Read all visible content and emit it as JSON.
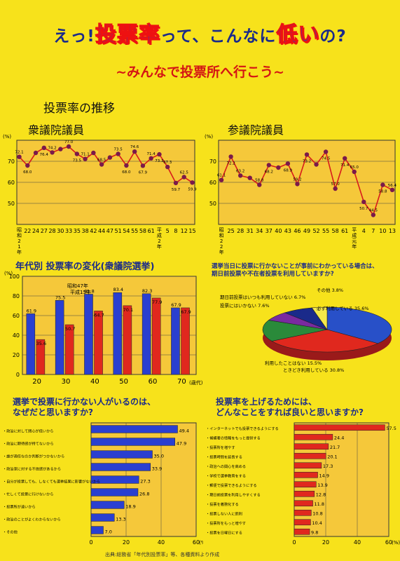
{
  "header": {
    "title_a": "えっ!",
    "title_b": "投票率",
    "title_c": "って、こんなに",
    "title_d": "低い",
    "title_e": "の?",
    "subtitle": "~みんなで投票所へ行こう~"
  },
  "trend_title": "投票率の推移",
  "colors": {
    "background": "#f7e21b",
    "panel": "#f5c83a",
    "line": "#d81b1b",
    "point": "#7a1a4a",
    "blue": "#2a3fd0",
    "red": "#e0281e",
    "navy": "#1a2a8a"
  },
  "chart_data": [
    {
      "type": "line",
      "title": "衆議院議員",
      "ylabel": "(%)",
      "ylim": [
        40,
        80
      ],
      "yticks": [
        "70",
        "60",
        "50"
      ],
      "x": [
        "昭和21年",
        "22",
        "24",
        "27",
        "28",
        "30",
        "33",
        "35",
        "38",
        "42",
        "44",
        "47",
        "51",
        "54",
        "55",
        "58",
        "61",
        "平成2年",
        "5",
        "8",
        "12",
        "15"
      ],
      "xlabels": [
        "昭和21年",
        "22",
        "24",
        "27",
        "28",
        "30",
        "33",
        "35",
        "38",
        "42",
        "44",
        "47",
        "51",
        "54",
        "55",
        "58",
        "61",
        "平成2年",
        "5",
        "8",
        "12",
        "15"
      ],
      "values": [
        72.1,
        68.0,
        74.0,
        76.4,
        74.2,
        75.8,
        77.0,
        73.5,
        71.1,
        74.0,
        68.5,
        71.8,
        73.5,
        68.0,
        74.6,
        67.9,
        71.4,
        73.3,
        67.3,
        59.7,
        62.5,
        59.9
      ],
      "labels": [
        "72.1",
        "68.0",
        "",
        "76.4",
        "74.2",
        "",
        "77.0",
        "73.5",
        "71.1",
        "",
        "68.5",
        "",
        "73.5",
        "68.0",
        "74.6",
        "67.9",
        "71.4",
        "73.3",
        "67.3",
        "59.7",
        "62.5",
        "59.9"
      ]
    },
    {
      "type": "line",
      "title": "参議院議員",
      "ylabel": "(%)",
      "ylim": [
        40,
        80
      ],
      "yticks": [
        "70",
        "60",
        "50"
      ],
      "x": [
        "昭和22年",
        "25",
        "28",
        "31",
        "34",
        "37",
        "40",
        "43",
        "46",
        "49",
        "52",
        "55",
        "58",
        "61",
        "平成元年",
        "4",
        "7",
        "10",
        "13"
      ],
      "xlabels": [
        "昭和22年",
        "25",
        "28",
        "31",
        "34",
        "37",
        "40",
        "43",
        "46",
        "49",
        "52",
        "55",
        "58",
        "61",
        "平成元年",
        "4",
        "7",
        "10",
        "13"
      ],
      "values": [
        61.1,
        72.2,
        63.2,
        62.1,
        58.8,
        68.2,
        67.0,
        68.9,
        59.2,
        73.2,
        68.5,
        74.5,
        57.0,
        71.4,
        65.0,
        50.7,
        44.5,
        58.8,
        56.4
      ],
      "labels": [
        "61.1",
        "72.2",
        "63.2",
        "",
        "58.8",
        "68.2",
        "",
        "68.9",
        "59.2",
        "73.2",
        "",
        "74.5",
        "57.0",
        "71.4",
        "65.0",
        "50.7",
        "44.5",
        "58.8",
        "56.4"
      ]
    },
    {
      "type": "bar",
      "title": "年代別 投票率の変化(衆議院選挙)",
      "ylabel": "(%)",
      "xlabel": "(歳代)",
      "ylim": [
        0,
        100
      ],
      "yticks": [
        "100",
        "80",
        "60",
        "40",
        "20",
        "0"
      ],
      "categories": [
        "20",
        "30",
        "40",
        "50",
        "60",
        "70"
      ],
      "series": [
        {
          "name": "昭和47年",
          "values": [
            61.9,
            75.5,
            81.8,
            83.4,
            82.3,
            67.9
          ]
        },
        {
          "name": "平成15年",
          "values": [
            35.6,
            50.7,
            64.7,
            70.1,
            77.9,
            67.9
          ]
        }
      ],
      "legend": [
        "昭和47年",
        "平成15年"
      ]
    },
    {
      "type": "pie",
      "title": "選挙当日に投票に行かないことが事前にわかっている場合は、期日前投票や不在者投票を利用していますか?",
      "slices": [
        {
          "label": "必ず利用している",
          "value": 35.6
        },
        {
          "label": "ときどき利用している",
          "value": 30.8
        },
        {
          "label": "利用したことはない",
          "value": 15.5
        },
        {
          "label": "期日前投票はいつも利用していない",
          "value": 6.7
        },
        {
          "label": "投票にはいかない",
          "value": 7.6
        },
        {
          "label": "その他",
          "value": 3.8
        }
      ],
      "labels": [
        "必ず利用している 35.6%",
        "ときどき利用している 30.8%",
        "利用したことはない 15.5%",
        "期日前投票はいつも利用していない 6.7%",
        "投票にはいかない 7.6%",
        "その他 3.8%"
      ]
    },
    {
      "type": "bar",
      "title": "選挙で投票に行かない人がいるのは、なぜだと思いますか?",
      "xlim": [
        0,
        60
      ],
      "xticks": [
        "0",
        "20",
        "40",
        "60"
      ],
      "xunit": "(%)",
      "categories": [
        "政治に対して関心が低いから",
        "政治に期待感が持てないから",
        "誰が適任なのか判断がつかないから",
        "政治家に対する不信感があるから",
        "自分が投票しても、しなくても選挙結果に影響がないから",
        "忙しくて投票に行けないから",
        "投票所が遠いから",
        "政治のことがよくわからないから",
        "その他"
      ],
      "values": [
        49.4,
        47.9,
        35.0,
        33.9,
        27.3,
        26.8,
        18.9,
        13.3,
        7.0
      ],
      "labels": [
        "49.4",
        "47.9",
        "35.0",
        "33.9",
        "27.3",
        "26.8",
        "18.9",
        "13.3",
        "7.0"
      ]
    },
    {
      "type": "bar",
      "title": "投票率を上げるためには、どんなことをすれば良いと思いますか?",
      "xlim": [
        0,
        60
      ],
      "xticks": [
        "0",
        "20",
        "40",
        "60"
      ],
      "xunit": "(%)",
      "categories": [
        "インターネットでも投票できるようにする",
        "候補者の情報をもっと提供する",
        "投票所を増やす",
        "投票時間を延長する",
        "政治への関心を高める",
        "学校で選挙教育をする",
        "郵便で投票できるようにする",
        "期日前投票を利用しやすくする",
        "投票を義務化する",
        "投票しない人に罰則",
        "投票所をもっと増やす",
        "投票を日曜日にする"
      ],
      "values": [
        57.5,
        24.4,
        21.7,
        20.1,
        17.3,
        14.9,
        13.9,
        12.8,
        11.8,
        10.8,
        10.4,
        9.8
      ],
      "labels": [
        "57.5",
        "24.4",
        "21.7",
        "20.1",
        "17.3",
        "14.9",
        "13.9",
        "12.8",
        "11.8",
        "10.8",
        "10.4",
        "9.8"
      ]
    }
  ],
  "footnote": "出典:総務省「年代別投票率」等、各種資料より作成"
}
